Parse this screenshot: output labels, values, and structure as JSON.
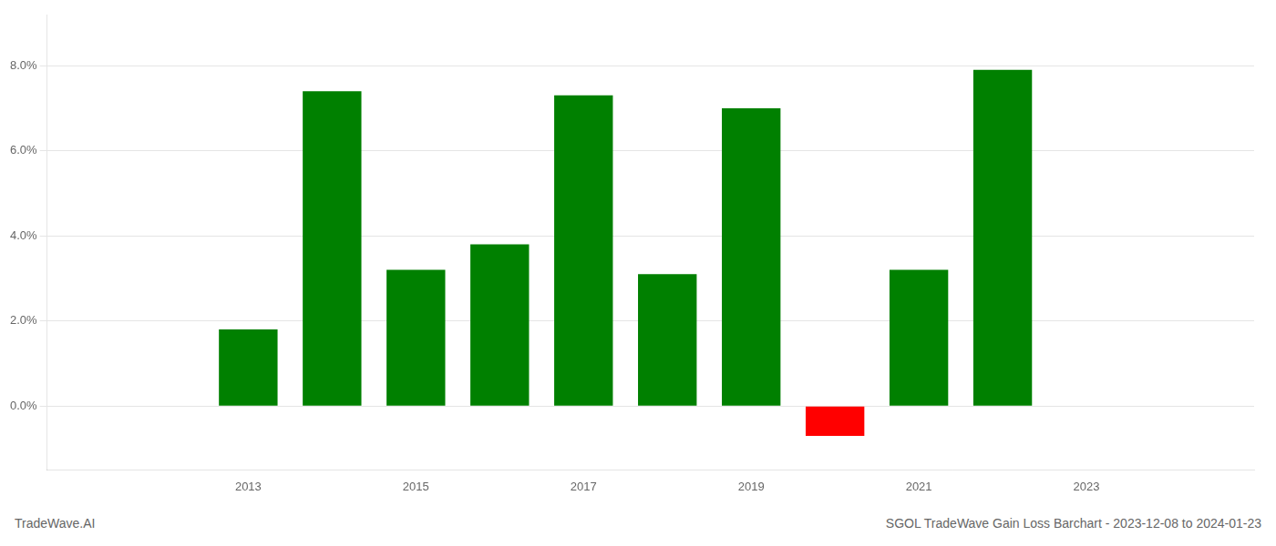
{
  "chart_data": {
    "type": "bar",
    "title": "SGOL TradeWave Gain Loss Barchart - 2023-12-08 to 2024-01-23",
    "annotations": [
      "TradeWave.AI"
    ],
    "x": [
      2013,
      2014,
      2015,
      2016,
      2017,
      2018,
      2019,
      2020,
      2021,
      2022
    ],
    "values": [
      0.018,
      0.074,
      0.032,
      0.038,
      0.073,
      0.031,
      0.07,
      -0.007,
      0.032,
      0.079
    ],
    "colors": [
      "#008000",
      "#008000",
      "#008000",
      "#008000",
      "#008000",
      "#008000",
      "#008000",
      "#ff0000",
      "#008000",
      "#008000"
    ],
    "xlim": [
      2011.8,
      2023.8
    ],
    "xticks": [
      2013,
      2015,
      2017,
      2019,
      2021,
      2023
    ],
    "ylim": [
      -0.015,
      0.092
    ],
    "yticks": [
      {
        "value": 0.0,
        "label": "0.0%"
      },
      {
        "value": 0.02,
        "label": "2.0%"
      },
      {
        "value": 0.04,
        "label": "4.0%"
      },
      {
        "value": 0.06,
        "label": "6.0%"
      },
      {
        "value": 0.08,
        "label": "8.0%"
      }
    ],
    "grid": "y"
  }
}
